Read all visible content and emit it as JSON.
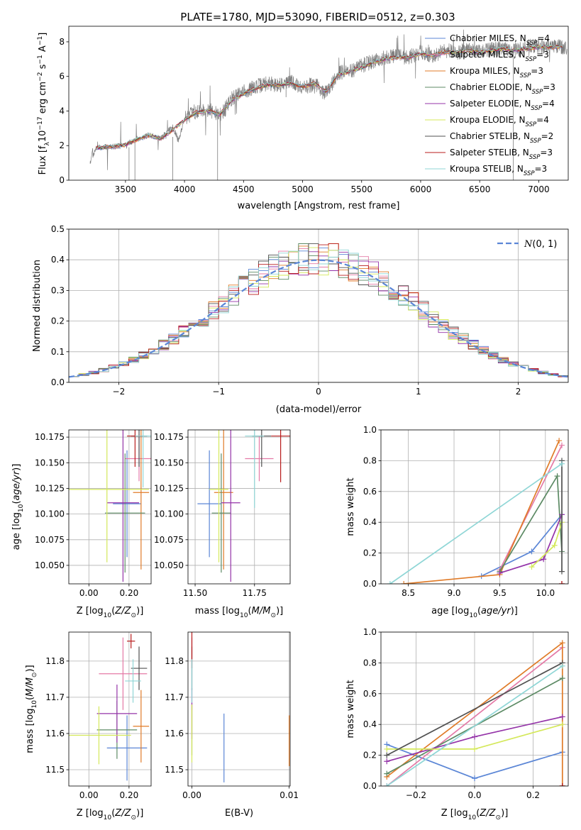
{
  "title": "PLATE=1780, MJD=53090, FIBERID=0512, z=0.303",
  "series": [
    {
      "name": "Chabrier MILES, N$_{SSP}$=4",
      "legend_main": "Chabrier MILES, N",
      "legend_sub": "SSP",
      "legend_tail": "=4",
      "color": "#5b86d6"
    },
    {
      "name": "Salpeter MILES, N$_{SSP}$=3",
      "legend_main": "Salpeter MILES, N",
      "legend_sub": "SSP",
      "legend_tail": "=3",
      "color": "#e47aa6"
    },
    {
      "name": "Kroupa MILES, N$_{SSP}$=3",
      "legend_main": "Kroupa MILES, N",
      "legend_sub": "SSP",
      "legend_tail": "=3",
      "color": "#e07b28"
    },
    {
      "name": "Chabrier ELODIE, N$_{SSP}$=3",
      "legend_main": "Chabrier ELODIE, N",
      "legend_sub": "SSP",
      "legend_tail": "=3",
      "color": "#5c8a64"
    },
    {
      "name": "Salpeter ELODIE, N$_{SSP}$=4",
      "legend_main": "Salpeter ELODIE, N",
      "legend_sub": "SSP",
      "legend_tail": "=4",
      "color": "#9433a8"
    },
    {
      "name": "Kroupa ELODIE, N$_{SSP}$=4",
      "legend_main": "Kroupa ELODIE, N",
      "legend_sub": "SSP",
      "legend_tail": "=4",
      "color": "#d4e85a"
    },
    {
      "name": "Chabrier STELIB, N$_{SSP}$=2",
      "legend_main": "Chabrier STELIB, N",
      "legend_sub": "SSP",
      "legend_tail": "=2",
      "color": "#505050"
    },
    {
      "name": "Salpeter STELIB, N$_{SSP}$=3",
      "legend_main": "Salpeter STELIB, N",
      "legend_sub": "SSP",
      "legend_tail": "=3",
      "color": "#b81c1c"
    },
    {
      "name": "Kroupa STELIB, N$_{SSP}$=3",
      "legend_main": "Kroupa STELIB, N",
      "legend_sub": "SSP",
      "legend_tail": "=3",
      "color": "#8fd6d6"
    }
  ],
  "chart_data": [
    {
      "id": "spectrum",
      "type": "line",
      "xlabel": "wavelength [Angstrom, rest frame]",
      "ylabel": "Flux [f$_\\lambda$10$^{-17}$ erg cm$^{-2}$ s$^{-1}$ A$^{-1}$]",
      "xlim": [
        3020,
        7250
      ],
      "ylim": [
        0,
        8.9
      ],
      "xticks": [
        3500,
        4000,
        4500,
        5000,
        5500,
        6000,
        6500,
        7000
      ],
      "yticks": [
        0,
        2,
        4,
        6,
        8
      ],
      "observed": {
        "color": "#808080",
        "x": [
          3200,
          3250,
          3300,
          3400,
          3500,
          3600,
          3700,
          3800,
          3900,
          3950,
          4000,
          4100,
          4200,
          4300,
          4400,
          4500,
          4600,
          4700,
          4800,
          4900,
          5000,
          5100,
          5200,
          5300,
          5400,
          5500,
          5600,
          5700,
          5800,
          5900,
          6000,
          6100,
          6200,
          6300,
          6400,
          6500,
          6600,
          6700,
          6800,
          6900,
          7000,
          7100
        ],
        "y": [
          1.05,
          1.85,
          1.9,
          1.95,
          2.05,
          2.4,
          2.6,
          2.4,
          3.1,
          2.3,
          3.6,
          4.0,
          4.1,
          3.7,
          4.7,
          5.1,
          5.4,
          5.6,
          5.5,
          5.7,
          5.3,
          5.6,
          5.0,
          6.2,
          6.3,
          6.6,
          6.9,
          7.1,
          7.2,
          7.1,
          7.4,
          7.2,
          7.5,
          7.4,
          7.5,
          7.4,
          7.6,
          7.6,
          7.5,
          7.7,
          7.8,
          7.7
        ]
      },
      "model": {
        "x": [
          3250,
          3400,
          3500,
          3600,
          3700,
          3800,
          3900,
          4000,
          4100,
          4200,
          4300,
          4400,
          4500,
          4600,
          4700,
          4800,
          4900,
          5000,
          5100,
          5200,
          5300,
          5400,
          5500,
          5600,
          5700,
          5800,
          5900,
          6000,
          6100,
          6200,
          6300,
          6400,
          6500,
          6600,
          6700,
          6800,
          6900,
          7000,
          7100
        ],
        "y": [
          1.85,
          1.95,
          2.05,
          2.35,
          2.6,
          2.4,
          2.9,
          3.5,
          3.9,
          4.0,
          3.8,
          4.6,
          5.0,
          5.3,
          5.5,
          5.5,
          5.6,
          5.4,
          5.6,
          5.1,
          6.1,
          6.3,
          6.5,
          6.8,
          7.0,
          7.1,
          7.1,
          7.3,
          7.2,
          7.4,
          7.4,
          7.5,
          7.4,
          7.5,
          7.6,
          7.5,
          7.6,
          7.7,
          7.7
        ]
      }
    },
    {
      "id": "residuals",
      "type": "histogram",
      "xlabel": "(data-model)/error",
      "ylabel": "Normed distribution",
      "xlim": [
        -2.5,
        2.5
      ],
      "ylim": [
        0,
        0.5
      ],
      "xticks": [
        -2,
        -1,
        0,
        1,
        2
      ],
      "yticks": [
        0.0,
        0.1,
        0.2,
        0.3,
        0.4,
        0.5
      ],
      "bin_width": 0.1,
      "gaussian_label": "$\\mathcal{N}(0,1)$",
      "gaussian_label_main": "N",
      "gaussian_label_tail": "(0, 1)"
    },
    {
      "id": "age_vs_Z",
      "type": "errorbar",
      "xlabel": "Z [log$_{10}$(Z/Z$_\\odot$)]",
      "ylabel": "age  [log$_{10}$(age/yr)]",
      "xlim": [
        -0.1,
        0.31
      ],
      "ylim": [
        10.032,
        10.182
      ],
      "xticks": [
        0.0,
        0.2
      ],
      "yticks": [
        10.05,
        10.075,
        10.1,
        10.125,
        10.15,
        10.175
      ],
      "points": [
        {
          "s": 0,
          "x": 0.19,
          "xerr": 0.07,
          "y": 10.11,
          "yerr": 0.052
        },
        {
          "s": 1,
          "x": 0.25,
          "xerr": 0.07,
          "y": 10.154,
          "yerr": 0.022
        },
        {
          "s": 2,
          "x": 0.26,
          "xerr": 0.04,
          "y": 10.121,
          "yerr": 0.075
        },
        {
          "s": 3,
          "x": 0.18,
          "xerr": 0.1,
          "y": 10.101,
          "yerr": 0.058
        },
        {
          "s": 4,
          "x": 0.17,
          "xerr": 0.08,
          "y": 10.111,
          "yerr": 0.077
        },
        {
          "s": 5,
          "x": 0.09,
          "xerr": 0.21,
          "y": 10.124,
          "yerr": 0.071
        },
        {
          "s": 6,
          "x": 0.25,
          "xerr": 0.04,
          "y": 10.176,
          "yerr": 0.03
        },
        {
          "s": 7,
          "x": 0.23,
          "xerr": 0.04,
          "y": 10.176,
          "yerr": 0.03
        },
        {
          "s": 8,
          "x": 0.27,
          "xerr": 0.04,
          "y": 10.176,
          "yerr": 0.05
        }
      ]
    },
    {
      "id": "age_vs_mass",
      "type": "errorbar",
      "xlabel": "mass [log$_{10}$(M/M$_\\odot$)]",
      "ylabel": "",
      "xlim": [
        11.47,
        11.9
      ],
      "ylim": [
        10.032,
        10.182
      ],
      "xticks": [
        11.5,
        11.75
      ],
      "yticks": [
        10.05,
        10.075,
        10.1,
        10.125,
        10.15,
        10.175
      ],
      "points": [
        {
          "s": 0,
          "x": 11.56,
          "xerr": 0.05,
          "y": 10.11,
          "yerr": 0.052
        },
        {
          "s": 1,
          "x": 11.77,
          "xerr": 0.06,
          "y": 10.154,
          "yerr": 0.022
        },
        {
          "s": 2,
          "x": 11.62,
          "xerr": 0.04,
          "y": 10.121,
          "yerr": 0.075
        },
        {
          "s": 3,
          "x": 11.61,
          "xerr": 0.04,
          "y": 10.101,
          "yerr": 0.058
        },
        {
          "s": 4,
          "x": 11.65,
          "xerr": 0.04,
          "y": 10.111,
          "yerr": 0.077
        },
        {
          "s": 5,
          "x": 11.6,
          "xerr": 0.04,
          "y": 10.124,
          "yerr": 0.071
        },
        {
          "s": 6,
          "x": 11.78,
          "xerr": 0.04,
          "y": 10.176,
          "yerr": 0.03
        },
        {
          "s": 7,
          "x": 11.86,
          "xerr": 0.04,
          "y": 10.176,
          "yerr": 0.045
        },
        {
          "s": 8,
          "x": 11.75,
          "xerr": 0.04,
          "y": 10.176,
          "yerr": 0.07
        }
      ]
    },
    {
      "id": "mass_vs_Z",
      "type": "errorbar",
      "xlabel": "Z [log$_{10}$(Z/Z$_\\odot$)]",
      "ylabel": "mass [log$_{10}$(M/M$_\\odot$)]",
      "xlim": [
        -0.1,
        0.31
      ],
      "ylim": [
        11.455,
        11.88
      ],
      "xticks": [
        0.0,
        0.2
      ],
      "yticks": [
        11.5,
        11.6,
        11.7,
        11.8
      ],
      "points": [
        {
          "s": 0,
          "x": 0.19,
          "xerr": 0.1,
          "y": 11.56,
          "yerr": 0.09
        },
        {
          "s": 1,
          "x": 0.17,
          "xerr": 0.12,
          "y": 11.765,
          "yerr": 0.1
        },
        {
          "s": 2,
          "x": 0.26,
          "xerr": 0.04,
          "y": 11.62,
          "yerr": 0.1
        },
        {
          "s": 3,
          "x": 0.14,
          "xerr": 0.1,
          "y": 11.61,
          "yerr": 0.08
        },
        {
          "s": 4,
          "x": 0.14,
          "xerr": 0.1,
          "y": 11.655,
          "yerr": 0.08
        },
        {
          "s": 5,
          "x": 0.05,
          "xerr": 0.16,
          "y": 11.595,
          "yerr": 0.08
        },
        {
          "s": 6,
          "x": 0.25,
          "xerr": 0.04,
          "y": 11.78,
          "yerr": 0.06
        },
        {
          "s": 7,
          "x": 0.21,
          "xerr": 0.02,
          "y": 11.855,
          "yerr": 0.02
        },
        {
          "s": 8,
          "x": 0.22,
          "xerr": 0.04,
          "y": 11.745,
          "yerr": 0.06
        }
      ]
    },
    {
      "id": "mass_vs_EBV",
      "type": "errorbar",
      "xlabel": "E(B-V)",
      "ylabel": "",
      "xlim": [
        -0.0004,
        0.0101
      ],
      "ylim": [
        11.455,
        11.88
      ],
      "xticks": [
        0.0,
        0.01
      ],
      "yticks": [
        11.5,
        11.6,
        11.7,
        11.8
      ],
      "points": [
        {
          "s": 0,
          "x": 0.0033,
          "xerr": 0,
          "y": 11.56,
          "yerr": 0.095
        },
        {
          "s": 1,
          "x": 0.0,
          "xerr": 0,
          "y": 11.765,
          "yerr": 0.1
        },
        {
          "s": 2,
          "x": 0.01,
          "xerr": 0,
          "y": 11.58,
          "yerr": 0.07
        },
        {
          "s": 3,
          "x": 0.0,
          "xerr": 0,
          "y": 11.61,
          "yerr": 0.07
        },
        {
          "s": 4,
          "x": 0.0,
          "xerr": 0,
          "y": 11.655,
          "yerr": 0.07
        },
        {
          "s": 5,
          "x": 0.0,
          "xerr": 0,
          "y": 11.6,
          "yerr": 0.08
        },
        {
          "s": 6,
          "x": 0.0,
          "xerr": 0,
          "y": 11.78,
          "yerr": 0.06
        },
        {
          "s": 7,
          "x": 0.0,
          "xerr": 0,
          "y": 11.83,
          "yerr": 0.05
        },
        {
          "s": 8,
          "x": 0.0,
          "xerr": 0,
          "y": 11.745,
          "yerr": 0.06
        }
      ]
    },
    {
      "id": "weight_vs_age",
      "type": "line",
      "xlabel": "age  [log$_{10}$(age/yr)]",
      "ylabel": "mass weight",
      "xlim": [
        8.2,
        10.25
      ],
      "ylim": [
        0,
        1.0
      ],
      "xticks": [
        8.5,
        9.0,
        9.5,
        10.0
      ],
      "yticks": [
        0.0,
        0.2,
        0.4,
        0.6,
        0.8,
        1.0
      ],
      "lines": [
        {
          "s": 0,
          "x": [
            9.3,
            9.85,
            10.18
          ],
          "y": [
            0.05,
            0.21,
            0.45
          ]
        },
        {
          "s": 1,
          "x": [
            9.5,
            10.18
          ],
          "y": [
            0.09,
            0.9
          ]
        },
        {
          "s": 2,
          "x": [
            8.45,
            9.5,
            10.15
          ],
          "y": [
            0.0,
            0.06,
            0.93
          ]
        },
        {
          "s": 3,
          "x": [
            9.5,
            10.13,
            10.18
          ],
          "y": [
            0.08,
            0.7,
            0.21
          ]
        },
        {
          "s": 4,
          "x": [
            9.5,
            9.98,
            10.18
          ],
          "y": [
            0.07,
            0.16,
            0.45
          ]
        },
        {
          "s": 5,
          "x": [
            9.85,
            10.1,
            10.18
          ],
          "y": [
            0.11,
            0.25,
            0.4
          ]
        },
        {
          "s": 6,
          "x": [
            10.18,
            10.18
          ],
          "y": [
            0.08,
            0.8
          ]
        },
        {
          "s": 7,
          "x": [
            10.18,
            10.18
          ],
          "y": [
            0.0,
            0.0
          ]
        },
        {
          "s": 8,
          "x": [
            8.3,
            10.18
          ],
          "y": [
            0.0,
            0.78
          ]
        }
      ]
    },
    {
      "id": "weight_vs_Z",
      "type": "line",
      "xlabel": "Z [log$_{10}$(Z/Z$_\\odot$)]",
      "ylabel": "mass weight",
      "xlim": [
        -0.32,
        0.32
      ],
      "ylim": [
        0,
        1.0
      ],
      "xticks": [
        -0.2,
        0.0,
        0.2
      ],
      "yticks": [
        0.0,
        0.2,
        0.4,
        0.6,
        0.8,
        1.0
      ],
      "lines": [
        {
          "s": 0,
          "x": [
            -0.3,
            0.0,
            0.3
          ],
          "y": [
            0.27,
            0.05,
            0.22
          ]
        },
        {
          "s": 1,
          "x": [
            -0.3,
            0.3
          ],
          "y": [
            0.0,
            0.9
          ]
        },
        {
          "s": 2,
          "x": [
            -0.3,
            0.3,
            0.3
          ],
          "y": [
            0.06,
            0.93,
            0.0
          ]
        },
        {
          "s": 3,
          "x": [
            -0.3,
            0.3
          ],
          "y": [
            0.08,
            0.7
          ]
        },
        {
          "s": 4,
          "x": [
            -0.3,
            0.0,
            0.3
          ],
          "y": [
            0.16,
            0.32,
            0.45
          ]
        },
        {
          "s": 5,
          "x": [
            -0.3,
            0.0,
            0.3
          ],
          "y": [
            0.24,
            0.24,
            0.4
          ]
        },
        {
          "s": 6,
          "x": [
            -0.3,
            0.3
          ],
          "y": [
            0.2,
            0.8
          ]
        },
        {
          "s": 7,
          "x": [
            0.3,
            0.3
          ],
          "y": [
            0.0,
            0.0
          ]
        },
        {
          "s": 8,
          "x": [
            -0.3,
            0.3
          ],
          "y": [
            0.0,
            0.78
          ]
        }
      ]
    }
  ]
}
